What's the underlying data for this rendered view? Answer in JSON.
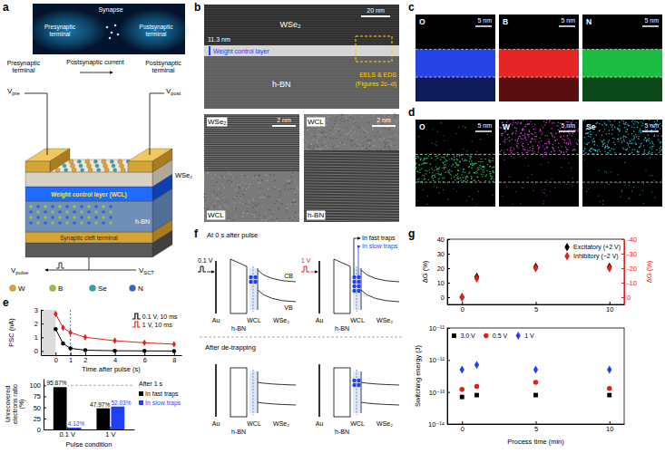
{
  "figure": {
    "panel_labels": [
      "a",
      "b",
      "c",
      "d",
      "e",
      "f",
      "g"
    ],
    "a": {
      "synapse": "Synapse",
      "image_presynaptic": "Presynaptic terminal",
      "image_postsynaptic": "Postsynaptic terminal",
      "presynaptic": "Presynaptic terminal",
      "postsynaptic_current": "Postsynaptic current",
      "postsynaptic": "Postsynaptic terminal",
      "v_pre": [
        "V",
        "pre"
      ],
      "v_post": [
        "V",
        "post"
      ],
      "v_sct": [
        "V",
        "SCT"
      ],
      "v_pulse": [
        "V",
        "pulse"
      ],
      "wse2": "WSe₂",
      "wcl": "Weight control layer (WCL)",
      "hbn": "h-BN",
      "sct": "Synaptic cleft terminal",
      "atoms": [
        {
          "symbol": "W",
          "color": "#e0a431"
        },
        {
          "symbol": "B",
          "color": "#9cc43a"
        },
        {
          "symbol": "Se",
          "color": "#2aa6b0"
        },
        {
          "symbol": "N",
          "color": "#2f66d6"
        }
      ]
    },
    "b": {
      "material_top": "WSe₂",
      "scale": "20 nm",
      "thickness": "11.3 nm",
      "wcl": "Weight control layer",
      "material_bottom": "h-BN",
      "box_label": "EELS & EDS",
      "box_ref": "(Figures 2c–d)",
      "insets": [
        {
          "top": "WSe₂",
          "bottom": "WCL",
          "scale": "2 nm"
        },
        {
          "top": "WCL",
          "bottom": "h-BN",
          "scale": "2 nm"
        }
      ]
    },
    "c": {
      "scale": "5 nm",
      "maps": [
        {
          "element": "O",
          "color": "#2b4cff"
        },
        {
          "element": "B",
          "color": "#ff2a2a"
        },
        {
          "element": "N",
          "color": "#22d04a"
        }
      ]
    },
    "d": {
      "scale": "5 nm",
      "maps": [
        {
          "element": "O",
          "color": "#39c36a"
        },
        {
          "element": "W",
          "color": "#d24ad8"
        },
        {
          "element": "Se",
          "color": "#33c4d4"
        }
      ]
    },
    "f": {
      "header": "At 0 s after pulse",
      "pulses": [
        {
          "label": "0.1 V",
          "color": "#000000"
        },
        {
          "label": "1 V",
          "color": "#e3211c"
        }
      ],
      "fast": "In fast traps",
      "slow": "In slow traps",
      "cb": "CB",
      "vb": "VB",
      "layers": [
        "Au",
        "h-BN",
        "WCL",
        "WSe₂"
      ],
      "after": "After de-trapping"
    }
  },
  "chart_data": [
    {
      "type": "line",
      "x_label": "Time after pulse (s)",
      "y_label": "PSC (nA)",
      "x": [
        0,
        0.5,
        1,
        2,
        4,
        6,
        8
      ],
      "series": [
        {
          "name": "0.1 V, 10 ms",
          "color": "#000000",
          "marker": "circle",
          "values": [
            1.6,
            0.55,
            0.2,
            0.06,
            0.02,
            0.01,
            0
          ]
        },
        {
          "name": "1 V, 10 ms",
          "color": "#e3211c",
          "marker": "diamond",
          "values": [
            2.7,
            1.7,
            1.35,
            1.0,
            0.75,
            0.6,
            0.5
          ]
        }
      ],
      "xlim": [
        -1,
        8.5
      ],
      "ylim": [
        -0.3,
        3
      ],
      "xticks": [
        0,
        1,
        2,
        4,
        6,
        8
      ],
      "yticks": [
        0,
        1,
        2,
        3
      ],
      "legend": "upper right"
    },
    {
      "type": "bar",
      "annotation": "After 1 s",
      "x_label": "Pulse condition",
      "y_label": "Unrecovered electrons ratio (%)",
      "categories": [
        "0.1 V",
        "1 V"
      ],
      "series": [
        {
          "name": "In fast traps",
          "color": "#000000",
          "values": [
            95.87,
            47.97
          ],
          "value_labels": [
            "95.87%",
            "47.97%"
          ]
        },
        {
          "name": "In slow traps",
          "color": "#1f3fff",
          "values": [
            4.12,
            52.03
          ],
          "value_labels": [
            "4.12%",
            "52.03%"
          ]
        }
      ],
      "ylim": [
        0,
        115
      ],
      "yticks": [
        0,
        25,
        50,
        75,
        100
      ],
      "data_labels": true,
      "legend": "right"
    },
    {
      "type": "scatter",
      "y_label": "ΔG (%)",
      "y2_label": "ΔG (%)",
      "x": [
        0,
        1,
        5,
        10
      ],
      "series": [
        {
          "name": "Excitatory (+2 V)",
          "color": "#000000",
          "marker": "diamond",
          "values": [
            0,
            14,
            21,
            21
          ]
        },
        {
          "name": "Inhibitory (−2 V)",
          "color": "#e3211c",
          "marker": "diamond",
          "axis": "y2",
          "values": [
            0,
            -13,
            -20,
            -20
          ]
        }
      ],
      "xlim": [
        -1,
        11
      ],
      "xticks": [
        0,
        5,
        10
      ],
      "ylim": [
        -5,
        40
      ],
      "yticks": [
        0,
        10,
        20,
        30,
        40
      ],
      "y2lim": [
        5,
        -40
      ],
      "y2ticks": [
        0,
        -10,
        -20,
        -30,
        -40
      ],
      "legend": "upper right"
    },
    {
      "type": "scatter",
      "x_label": "Process time (min)",
      "y_label": "Switching energy (J)",
      "log": "y",
      "x": [
        0,
        1,
        5,
        10
      ],
      "series": [
        {
          "name": "3.0 V",
          "color": "#000000",
          "marker": "square",
          "values": [
            7e-14,
            8e-14,
            8e-14,
            8e-14
          ]
        },
        {
          "name": "0.5 V",
          "color": "#e3211c",
          "marker": "circle",
          "values": [
            1.2e-13,
            1.5e-13,
            2e-13,
            1.3e-13
          ]
        },
        {
          "name": "1 V",
          "color": "#1f3fff",
          "marker": "diamond",
          "values": [
            5e-13,
            7e-13,
            5e-13,
            5e-13
          ]
        }
      ],
      "xlim": [
        -1,
        11
      ],
      "xticks": [
        0,
        5,
        10
      ],
      "ylim": [
        1e-14,
        1e-11
      ],
      "yticks": [
        {
          "value": 1e-14,
          "label": "10⁻¹⁴"
        },
        {
          "value": 1e-13,
          "label": "10⁻¹³"
        },
        {
          "value": 1e-12,
          "label": "10⁻¹²"
        },
        {
          "value": 1e-11,
          "label": "10⁻¹¹"
        }
      ],
      "legend": "upper left"
    }
  ]
}
